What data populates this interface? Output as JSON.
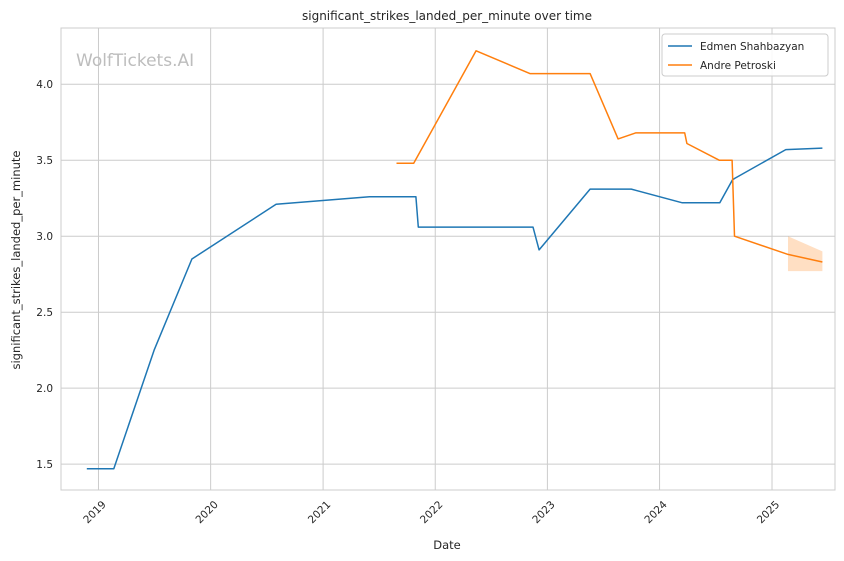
{
  "chart_data": {
    "type": "line",
    "title": "significant_strikes_landed_per_minute over time",
    "xlabel": "Date",
    "ylabel": "significant_strikes_landed_per_minute",
    "watermark": "WolfTickets.AI",
    "x_ticks": [
      "2019",
      "2020",
      "2021",
      "2022",
      "2023",
      "2024",
      "2025"
    ],
    "y_ticks": [
      "1.5",
      "2.0",
      "2.5",
      "3.0",
      "3.5",
      "4.0"
    ],
    "xlim": [
      "2018-09-01",
      "2025-07-25"
    ],
    "ylim": [
      1.33,
      4.37
    ],
    "grid": true,
    "legend_position": "top-right",
    "series": [
      {
        "name": "Edmen Shahbazyan",
        "color": "#1f77b4",
        "points": [
          [
            "2018-11-24",
            1.47
          ],
          [
            "2019-02-20",
            1.47
          ],
          [
            "2019-07-01",
            2.25
          ],
          [
            "2019-11-01",
            2.85
          ],
          [
            "2020-08-01",
            3.21
          ],
          [
            "2021-06-01",
            3.26
          ],
          [
            "2021-10-30",
            3.26
          ],
          [
            "2021-11-07",
            3.06
          ],
          [
            "2022-11-15",
            3.06
          ],
          [
            "2022-12-05",
            2.91
          ],
          [
            "2023-05-20",
            3.31
          ],
          [
            "2023-10-01",
            3.31
          ],
          [
            "2024-03-15",
            3.22
          ],
          [
            "2024-07-15",
            3.22
          ],
          [
            "2024-08-25",
            3.37
          ],
          [
            "2024-09-01",
            3.38
          ],
          [
            "2025-02-15",
            3.57
          ],
          [
            "2025-06-14",
            3.58
          ]
        ]
      },
      {
        "name": "Andre Petroski",
        "color": "#ff7f0e",
        "points": [
          [
            "2021-08-28",
            3.48
          ],
          [
            "2021-10-23",
            3.48
          ],
          [
            "2022-05-14",
            4.22
          ],
          [
            "2022-11-05",
            4.07
          ],
          [
            "2023-05-20",
            4.07
          ],
          [
            "2023-08-19",
            3.64
          ],
          [
            "2023-10-15",
            3.68
          ],
          [
            "2024-03-23",
            3.68
          ],
          [
            "2024-03-30",
            3.61
          ],
          [
            "2024-07-13",
            3.5
          ],
          [
            "2024-08-24",
            3.5
          ],
          [
            "2024-09-01",
            3.0
          ],
          [
            "2025-02-22",
            2.88
          ],
          [
            "2025-06-14",
            2.83
          ]
        ],
        "band": {
          "x": [
            "2025-02-22",
            "2025-06-14"
          ],
          "upper": [
            3.0,
            2.9
          ],
          "lower": [
            2.77,
            2.77
          ]
        }
      }
    ]
  }
}
